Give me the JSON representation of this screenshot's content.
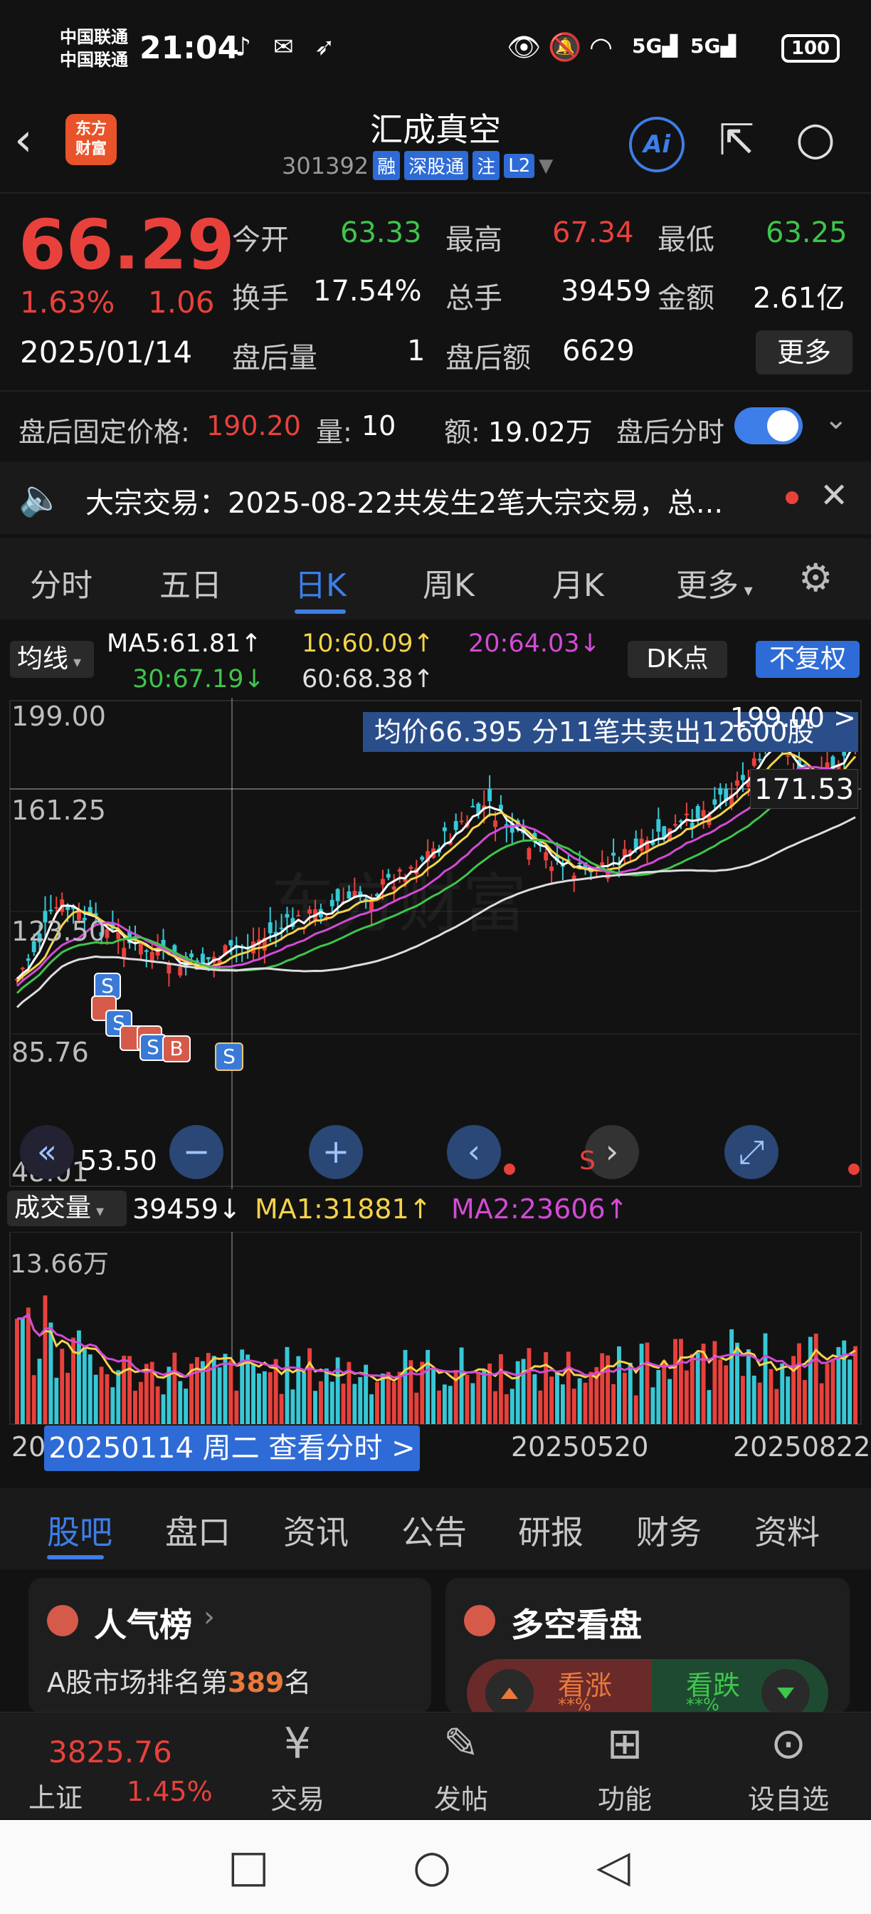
{
  "status_bar": {
    "carrier1": "中国联通",
    "carrier2": "中国联通",
    "time": "21:04",
    "battery": "100",
    "icons": [
      "eye-icon",
      "mute-icon",
      "wifi-icon",
      "5g-signal-icon",
      "5g-signal-icon"
    ]
  },
  "header": {
    "logo_line1": "东方",
    "logo_line2": "财富",
    "stock_name": "汇成真空",
    "stock_code": "301392",
    "tags": [
      "融",
      "深股通",
      "注",
      "L2"
    ],
    "ai_label": "Ai"
  },
  "quote": {
    "price": "66.29",
    "change_pct": "1.63%",
    "change": "1.06",
    "date": "2025/01/14",
    "open_label": "今开",
    "open": "63.33",
    "high_label": "最高",
    "high": "67.34",
    "low_label": "最低",
    "low": "63.25",
    "turnover_label": "换手",
    "turnover": "17.54%",
    "volume_label": "总手",
    "volume": "39459",
    "amount_label": "金额",
    "amount": "2.61亿",
    "after_vol_label": "盘后量",
    "after_vol": "1",
    "after_amt_label": "盘后额",
    "after_amt": "6629",
    "more_label": "更多"
  },
  "after_hours": {
    "price_label": "盘后固定价格:",
    "price": "190.20",
    "vol_label": "量:",
    "vol": "10",
    "amt_label": "额:",
    "amt": "19.02万",
    "toggle_label": "盘后分时",
    "toggle_on": true
  },
  "notice": {
    "text": "大宗交易：2025-08-22共发生2笔大宗交易，总..."
  },
  "tabs": [
    {
      "label": "分时"
    },
    {
      "label": "五日"
    },
    {
      "label": "日K"
    },
    {
      "label": "周K"
    },
    {
      "label": "月K"
    },
    {
      "label": "更多"
    }
  ],
  "ma_row": {
    "select_label": "均线",
    "ma5": "MA5:61.81↑",
    "ma10": "10:60.09↑",
    "ma20": "20:64.03↓",
    "ma30": "30:67.19↓",
    "ma60": "60:68.38↑",
    "dk_label": "DK点",
    "fq_label": "不复权"
  },
  "kchart": {
    "avg_banner": "均价66.395  分11笔共卖出12600股",
    "top_right": "199.00 >",
    "price_callout": "171.53",
    "y_labels": [
      "199.00",
      "161.25",
      "123.50",
      "85.76",
      "48.01"
    ],
    "low_label": "53.50",
    "ranges": {
      "y_min": 48.01,
      "y_max": 199.0
    },
    "accent": "#e8413c",
    "down_color": "#37c8d6"
  },
  "volume_row": {
    "select_label": "成交量",
    "value": "39459↓",
    "ma1": "MA1:31881↑",
    "ma2": "MA2:23606↑",
    "max_label": "13.66万"
  },
  "date_axis": {
    "left": "20",
    "callout": "20250114 周二 查看分时 >",
    "mid": "20250520",
    "right": "20250822"
  },
  "sub_tabs": [
    {
      "label": "股吧"
    },
    {
      "label": "盘口"
    },
    {
      "label": "资讯"
    },
    {
      "label": "公告"
    },
    {
      "label": "研报"
    },
    {
      "label": "财务"
    },
    {
      "label": "资料"
    }
  ],
  "cards": {
    "popular_title": "人气榜",
    "popular_rank_prefix": "A股市场排名第",
    "popular_rank": "389",
    "popular_rank_suffix": "名",
    "sentiment_title": "多空看盘",
    "bull_label": "看涨",
    "bear_label": "看跌",
    "bull_pct": "**%",
    "bear_pct": "**%"
  },
  "bottom_nav": {
    "index_value": "3825.76",
    "index_name": "上证",
    "index_pct": "1.45%",
    "items": [
      {
        "label": "交易"
      },
      {
        "label": "发帖"
      },
      {
        "label": "功能"
      },
      {
        "label": "设自选"
      }
    ]
  }
}
